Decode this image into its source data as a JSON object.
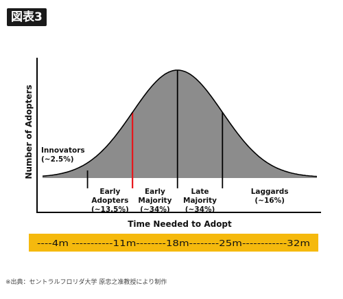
{
  "figure": {
    "badge": "図表3",
    "title": "",
    "footnote": "※出典：セントラルフロリダ大学 原忠之准教授により制作"
  },
  "chart_data": {
    "type": "area",
    "title": "",
    "xlabel": "Time Needed to Adopt",
    "ylabel": "Number of Adopters",
    "grid": false,
    "legend": "none",
    "colors": {
      "curve_fill": "#8c8c8c",
      "outline": "#000000",
      "highlight_divider": "#e8161b",
      "timeline_bar": "#f5b90d"
    },
    "timeline_text": "----4m -----------11m--------18m--------25m------------32m",
    "categories": [
      {
        "label_lines": [
          "Innovators",
          "(~2.5%)"
        ],
        "share_percent": 2.5
      },
      {
        "label_lines": [
          "Early",
          "Adopters",
          "(~13.5%)"
        ],
        "share_percent": 13.5
      },
      {
        "label_lines": [
          "Early",
          "Majority",
          "(~34%)"
        ],
        "share_percent": 34
      },
      {
        "label_lines": [
          "Late",
          "Majority",
          "(~34%)"
        ],
        "share_percent": 34
      },
      {
        "label_lines": [
          "Laggards",
          "(~16%)"
        ],
        "share_percent": 16
      }
    ],
    "boundaries_sd": [
      -2,
      -1,
      0,
      1
    ],
    "highlighted_boundary_sd": -1,
    "x_range_sd": [
      -3,
      3.1
    ]
  }
}
